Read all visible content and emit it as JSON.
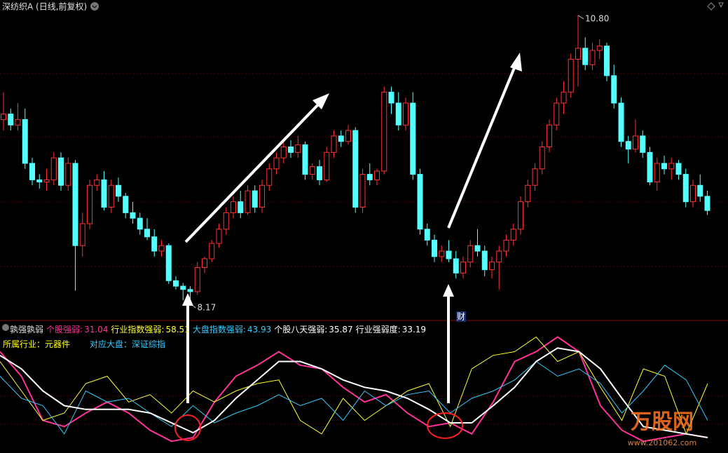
{
  "chart_data": [
    {
      "type": "candlestick",
      "title": "深纺织A (日线,前复权)",
      "ylim": [
        8.03,
        10.94
      ],
      "up_color": "#ff3232",
      "down_color": "#54ffff",
      "annotations": [
        {
          "value": 10.8,
          "label": "10.80"
        },
        {
          "value": 8.17,
          "label": "8.17"
        }
      ],
      "badge": "财",
      "ohlc": [
        [
          9.85,
          10.1,
          9.75,
          9.9
        ],
        [
          9.9,
          9.95,
          9.75,
          9.8
        ],
        [
          9.8,
          10.0,
          9.75,
          9.85
        ],
        [
          9.85,
          9.95,
          9.4,
          9.45
        ],
        [
          9.45,
          9.5,
          9.25,
          9.3
        ],
        [
          9.3,
          9.35,
          9.22,
          9.28
        ],
        [
          9.28,
          9.4,
          9.2,
          9.3
        ],
        [
          9.3,
          9.55,
          9.25,
          9.5
        ],
        [
          9.5,
          9.55,
          9.2,
          9.25
        ],
        [
          9.25,
          9.5,
          9.2,
          9.45
        ],
        [
          9.45,
          9.48,
          8.29,
          8.7
        ],
        [
          8.7,
          9.0,
          8.6,
          8.9
        ],
        [
          8.9,
          9.3,
          8.85,
          9.25
        ],
        [
          9.25,
          9.35,
          9.2,
          9.3
        ],
        [
          9.3,
          9.38,
          9.02,
          9.05
        ],
        [
          9.05,
          9.3,
          9.0,
          9.25
        ],
        [
          9.25,
          9.32,
          9.1,
          9.15
        ],
        [
          9.15,
          9.18,
          8.95,
          9.0
        ],
        [
          9.0,
          9.1,
          8.9,
          8.95
        ],
        [
          8.95,
          9.0,
          8.8,
          8.85
        ],
        [
          8.85,
          8.95,
          8.75,
          8.78
        ],
        [
          8.78,
          8.85,
          8.6,
          8.65
        ],
        [
          8.65,
          8.75,
          8.6,
          8.7
        ],
        [
          8.7,
          8.72,
          8.35,
          8.38
        ],
        [
          8.38,
          8.42,
          8.3,
          8.33
        ],
        [
          8.33,
          8.36,
          8.2,
          8.3
        ],
        [
          8.3,
          8.33,
          8.17,
          8.28
        ],
        [
          8.28,
          8.55,
          8.25,
          8.5
        ],
        [
          8.5,
          8.6,
          8.45,
          8.58
        ],
        [
          8.58,
          8.75,
          8.55,
          8.72
        ],
        [
          8.72,
          8.9,
          8.68,
          8.85
        ],
        [
          8.85,
          9.05,
          8.8,
          9.0
        ],
        [
          9.0,
          9.15,
          8.95,
          9.1
        ],
        [
          9.1,
          9.2,
          8.95,
          9.0
        ],
        [
          9.0,
          9.25,
          8.98,
          9.2
        ],
        [
          9.2,
          9.25,
          9.0,
          9.05
        ],
        [
          9.05,
          9.3,
          9.0,
          9.25
        ],
        [
          9.25,
          9.45,
          9.2,
          9.4
        ],
        [
          9.4,
          9.55,
          9.35,
          9.5
        ],
        [
          9.5,
          9.65,
          9.45,
          9.6
        ],
        [
          9.6,
          9.66,
          9.5,
          9.55
        ],
        [
          9.55,
          9.7,
          9.5,
          9.62
        ],
        [
          9.62,
          9.65,
          9.3,
          9.35
        ],
        [
          9.35,
          9.45,
          9.3,
          9.42
        ],
        [
          9.42,
          9.48,
          9.25,
          9.3
        ],
        [
          9.3,
          9.6,
          9.28,
          9.55
        ],
        [
          9.55,
          9.75,
          9.5,
          9.7
        ],
        [
          9.7,
          9.75,
          9.6,
          9.65
        ],
        [
          9.65,
          9.8,
          9.62,
          9.75
        ],
        [
          9.75,
          9.78,
          9.0,
          9.05
        ],
        [
          9.05,
          9.4,
          9.0,
          9.35
        ],
        [
          9.35,
          9.45,
          9.25,
          9.3
        ],
        [
          9.3,
          9.4,
          9.25,
          9.38
        ],
        [
          9.38,
          10.15,
          9.35,
          10.1
        ],
        [
          10.1,
          10.15,
          9.9,
          10.0
        ],
        [
          10.0,
          10.1,
          9.75,
          9.8
        ],
        [
          9.8,
          10.05,
          9.75,
          10.0
        ],
        [
          10.0,
          10.1,
          9.3,
          9.35
        ],
        [
          9.35,
          9.4,
          8.8,
          8.85
        ],
        [
          8.85,
          8.9,
          8.7,
          8.75
        ],
        [
          8.75,
          8.8,
          8.55,
          8.6
        ],
        [
          8.6,
          8.7,
          8.55,
          8.65
        ],
        [
          8.65,
          8.75,
          8.55,
          8.58
        ],
        [
          8.58,
          8.65,
          8.4,
          8.45
        ],
        [
          8.45,
          8.6,
          8.4,
          8.55
        ],
        [
          8.55,
          8.75,
          8.5,
          8.7
        ],
        [
          8.7,
          8.85,
          8.6,
          8.65
        ],
        [
          8.65,
          8.7,
          8.42,
          8.48
        ],
        [
          8.48,
          8.6,
          8.4,
          8.55
        ],
        [
          8.55,
          8.7,
          8.3,
          8.65
        ],
        [
          8.65,
          8.8,
          8.6,
          8.75
        ],
        [
          8.75,
          8.9,
          8.7,
          8.85
        ],
        [
          8.85,
          9.15,
          8.8,
          9.1
        ],
        [
          9.1,
          9.3,
          9.05,
          9.25
        ],
        [
          9.25,
          9.45,
          9.2,
          9.4
        ],
        [
          9.4,
          9.65,
          9.35,
          9.6
        ],
        [
          9.6,
          9.85,
          9.55,
          9.8
        ],
        [
          9.8,
          10.05,
          9.75,
          10.0
        ],
        [
          10.0,
          10.2,
          9.9,
          10.1
        ],
        [
          10.1,
          10.45,
          10.05,
          10.4
        ],
        [
          10.4,
          10.8,
          10.15,
          10.5
        ],
        [
          10.5,
          10.6,
          10.3,
          10.35
        ],
        [
          10.35,
          10.55,
          10.3,
          10.48
        ],
        [
          10.48,
          10.58,
          10.4,
          10.52
        ],
        [
          10.52,
          10.55,
          10.2,
          10.25
        ],
        [
          10.25,
          10.35,
          9.95,
          10.0
        ],
        [
          10.0,
          10.05,
          9.6,
          9.65
        ],
        [
          9.65,
          9.7,
          9.45,
          9.58
        ],
        [
          9.58,
          9.85,
          9.55,
          9.7
        ],
        [
          9.7,
          9.75,
          9.5,
          9.55
        ],
        [
          9.55,
          9.6,
          9.25,
          9.28
        ],
        [
          9.28,
          9.5,
          9.2,
          9.45
        ],
        [
          9.45,
          9.52,
          9.35,
          9.4
        ],
        [
          9.4,
          9.5,
          9.3,
          9.45
        ],
        [
          9.45,
          9.48,
          9.3,
          9.35
        ],
        [
          9.35,
          9.4,
          9.05,
          9.1
        ],
        [
          9.1,
          9.3,
          9.05,
          9.25
        ],
        [
          9.25,
          9.35,
          9.1,
          9.15
        ],
        [
          9.15,
          9.2,
          8.98,
          9.02
        ]
      ]
    },
    {
      "type": "line",
      "title": "孰强孰弱",
      "ylim": [
        0,
        100
      ],
      "info": [
        {
          "label": "所属行业：元器件",
          "color": "#ffff00"
        },
        {
          "label": "对应大盘：深证综指",
          "color": "#33ccff"
        }
      ],
      "series": [
        {
          "name": "个股强弱:",
          "latest": 31.04,
          "color": "#ff3399",
          "values": [
            82,
            62,
            26,
            21,
            32,
            41,
            32,
            18,
            9,
            12,
            41,
            62,
            71,
            82,
            71,
            68,
            53,
            41,
            47,
            32,
            21,
            24,
            15,
            41,
            74,
            82,
            94,
            82,
            38,
            18,
            9,
            12,
            15,
            12
          ]
        },
        {
          "name": "行业指数强弱:",
          "latest": 58.51,
          "color": "#ffff33",
          "values": [
            74,
            50,
            26,
            32,
            56,
            62,
            41,
            47,
            32,
            50,
            41,
            50,
            56,
            59,
            26,
            15,
            44,
            26,
            38,
            50,
            56,
            21,
            68,
            79,
            82,
            94,
            74,
            82,
            53,
            26,
            68,
            62,
            15,
            56
          ]
        },
        {
          "name": "大盘指数强弱:",
          "latest": 43.93,
          "color": "#33ccff",
          "values": [
            62,
            44,
            38,
            15,
            50,
            41,
            44,
            32,
            21,
            38,
            24,
            32,
            38,
            47,
            38,
            44,
            26,
            50,
            38,
            47,
            50,
            32,
            44,
            50,
            59,
            74,
            62,
            68,
            56,
            32,
            50,
            71,
            59,
            26
          ]
        },
        {
          "name": "个股八天强弱:",
          "latest": 35.87,
          "color": "#ffffff",
          "values": [
            79,
            68,
            50,
            38,
            35,
            35,
            35,
            32,
            24,
            16,
            26,
            44,
            59,
            74,
            74,
            68,
            59,
            53,
            50,
            44,
            35,
            24,
            24,
            38,
            53,
            74,
            85,
            82,
            68,
            44,
            21,
            18,
            15,
            12
          ]
        }
      ],
      "readouts": [
        {
          "name": "行业强弱度:",
          "value": 33.19
        }
      ]
    }
  ],
  "watermark": {
    "title": "万股网",
    "url": "www.201062.com"
  }
}
